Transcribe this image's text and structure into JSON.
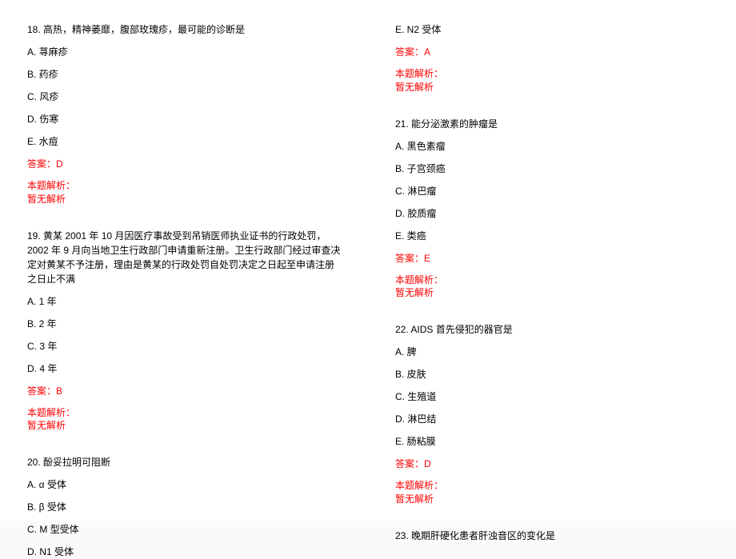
{
  "left": {
    "q18": {
      "title": "18. 高热，精神萎靡，腹部玫瑰疹，最可能的诊断是",
      "a": "A. 荨麻疹",
      "b": "B. 药疹",
      "c": "C. 风疹",
      "d": "D. 伤寒",
      "e": "E. 水痘",
      "ans": "答案：D",
      "exp1": "本题解析：",
      "exp2": "暂无解析"
    },
    "q19": {
      "title": "19. 黄某 2001 年 10 月因医疗事故受到吊销医师执业证书的行政处罚，2002 年 9 月向当地卫生行政部门申请重新注册。卫生行政部门经过审查决定对黄某不予注册，理由是黄某的行政处罚自处罚决定之日起至申请注册之日止不满",
      "a": "A. 1 年",
      "b": "B. 2 年",
      "c": "C. 3 年",
      "d": "D. 4 年",
      "ans": "答案：B",
      "exp1": "本题解析：",
      "exp2": "暂无解析"
    },
    "q20": {
      "title": "20. 酚妥拉明可阻断",
      "a": "A. α 受体",
      "b": "B. β 受体",
      "c": "C. M 型受体",
      "d": "D. N1 受体"
    }
  },
  "right": {
    "q20e": "E. N2 受体",
    "q20ans": "答案：A",
    "q20exp1": "本题解析：",
    "q20exp2": "暂无解析",
    "q21": {
      "title": "21. 能分泌激素的肿瘤是",
      "a": "A. 黑色素瘤",
      "b": "B. 子宫颈癌",
      "c": "C. 淋巴瘤",
      "d": "D. 胶质瘤",
      "e": "E. 类癌",
      "ans": "答案：E",
      "exp1": "本题解析：",
      "exp2": "暂无解析"
    },
    "q22": {
      "title": "22. AIDS 首先侵犯的器官是",
      "a": "A. 脾",
      "b": "B. 皮肤",
      "c": "C. 生殖道",
      "d": "D. 淋巴结",
      "e": "E. 肠粘膜",
      "ans": "答案：D",
      "exp1": "本题解析：",
      "exp2": "暂无解析"
    },
    "q23": {
      "title": "23. 晚期肝硬化患者肝浊音区的变化是"
    }
  }
}
